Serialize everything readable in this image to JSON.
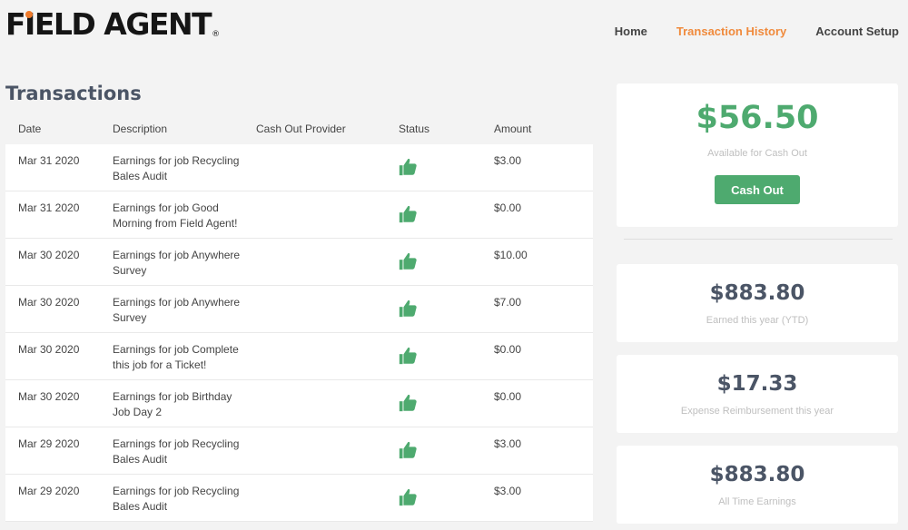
{
  "brand": {
    "logo_text_pre": "F",
    "logo_text_i": "I",
    "logo_text_post": "ELD AGENT",
    "logo_reg": "®",
    "accent_color": "#f07a2a"
  },
  "nav": {
    "items": [
      {
        "label": "Home",
        "active": false
      },
      {
        "label": "Transaction History",
        "active": true
      },
      {
        "label": "Account Setup",
        "active": false
      }
    ]
  },
  "page": {
    "title": "Transactions"
  },
  "table": {
    "headers": {
      "date": "Date",
      "description": "Description",
      "provider": "Cash Out Provider",
      "status": "Status",
      "amount": "Amount"
    },
    "rows": [
      {
        "date": "Mar 31 2020",
        "description": "Earnings for job Recycling Bales Audit",
        "provider": "",
        "status": "thumbs-up-icon",
        "amount": "$3.00"
      },
      {
        "date": "Mar 31 2020",
        "description": "Earnings for job Good Morning from Field Agent!",
        "provider": "",
        "status": "thumbs-up-icon",
        "amount": "$0.00"
      },
      {
        "date": "Mar 30 2020",
        "description": "Earnings for job Anywhere Survey",
        "provider": "",
        "status": "thumbs-up-icon",
        "amount": "$10.00"
      },
      {
        "date": "Mar 30 2020",
        "description": "Earnings for job Anywhere Survey",
        "provider": "",
        "status": "thumbs-up-icon",
        "amount": "$7.00"
      },
      {
        "date": "Mar 30 2020",
        "description": "Earnings for job Complete this job for a Ticket!",
        "provider": "",
        "status": "thumbs-up-icon",
        "amount": "$0.00"
      },
      {
        "date": "Mar 30 2020",
        "description": "Earnings for job Birthday Job Day 2",
        "provider": "",
        "status": "thumbs-up-icon",
        "amount": "$0.00"
      },
      {
        "date": "Mar 29 2020",
        "description": "Earnings for job Recycling Bales Audit",
        "provider": "",
        "status": "thumbs-up-icon",
        "amount": "$3.00"
      },
      {
        "date": "Mar 29 2020",
        "description": "Earnings for job Recycling Bales Audit",
        "provider": "",
        "status": "thumbs-up-icon",
        "amount": "$3.00"
      }
    ]
  },
  "summary": {
    "available": {
      "amount": "$56.50",
      "label": "Available for Cash Out",
      "button": "Cash Out"
    },
    "ytd": {
      "amount": "$883.80",
      "label": "Earned this year (YTD)"
    },
    "expense": {
      "amount": "$17.33",
      "label": "Expense Reimbursement this year"
    },
    "all_time": {
      "amount": "$883.80",
      "label": "All Time Earnings"
    }
  },
  "colors": {
    "green": "#4eaa6f",
    "nav_active": "#f08a3c",
    "heading": "#4b5566"
  }
}
